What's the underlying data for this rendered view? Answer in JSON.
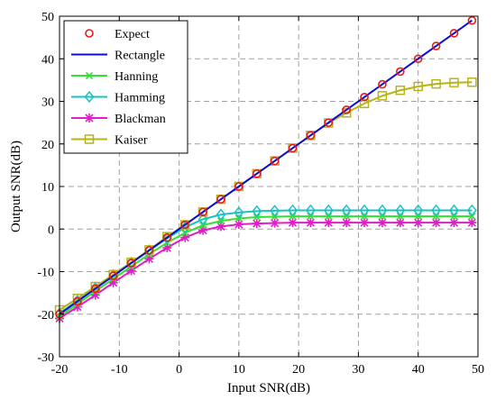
{
  "chart_data": {
    "type": "line",
    "title": "",
    "xlabel": "Input SNR(dB)",
    "ylabel": "Output SNR(dB)",
    "xlim": [
      -20,
      50
    ],
    "ylim": [
      -30,
      50
    ],
    "xticks": [
      -20,
      -10,
      0,
      10,
      20,
      30,
      40,
      50
    ],
    "yticks": [
      -30,
      -20,
      -10,
      0,
      10,
      20,
      30,
      40,
      50
    ],
    "xtick_labels": [
      "-20",
      "-10",
      "0",
      "10",
      "20",
      "30",
      "40",
      "50"
    ],
    "ytick_labels": [
      "-30",
      "-20",
      "-10",
      "0",
      "10",
      "20",
      "30",
      "40",
      "50"
    ],
    "grid": true,
    "legend_position": "top-left",
    "x": [
      -20,
      -17,
      -14,
      -11,
      -8,
      -5,
      -2,
      1,
      4,
      7,
      10,
      13,
      16,
      19,
      22,
      25,
      28,
      31,
      34,
      37,
      40,
      43,
      46,
      49
    ],
    "series": [
      {
        "name": "Expect",
        "color": "#e8191b",
        "marker": "circle",
        "line": false,
        "values": [
          -20,
          -17,
          -14,
          -11,
          -8,
          -5,
          -2,
          1,
          4,
          7,
          10,
          13,
          16,
          19,
          22,
          25,
          28,
          31,
          34,
          37,
          40,
          43,
          46,
          49
        ]
      },
      {
        "name": "Rectangle",
        "color": "#0d0dd4",
        "marker": "none",
        "line": true,
        "values": [
          -20,
          -17,
          -14,
          -11,
          -8,
          -5,
          -2,
          1,
          4,
          7,
          10,
          13,
          16,
          19,
          22,
          25,
          28,
          31,
          34,
          37,
          40,
          43,
          46,
          49
        ]
      },
      {
        "name": "Hanning",
        "color": "#33e033",
        "marker": "x",
        "line": true,
        "values": [
          -20.6,
          -17.6,
          -14.6,
          -11.7,
          -8.8,
          -5.9,
          -3.2,
          -0.9,
          0.9,
          1.9,
          2.5,
          2.8,
          2.9,
          3.0,
          3.0,
          3.0,
          3.0,
          3.0,
          3.0,
          3.0,
          3.0,
          3.0,
          3.0,
          3.0
        ]
      },
      {
        "name": "Hamming",
        "color": "#19c2c2",
        "marker": "diamond",
        "line": true,
        "values": [
          -19.8,
          -16.8,
          -13.8,
          -10.8,
          -7.9,
          -5.0,
          -2.2,
          0.4,
          2.3,
          3.4,
          3.9,
          4.2,
          4.3,
          4.4,
          4.4,
          4.4,
          4.4,
          4.4,
          4.4,
          4.4,
          4.4,
          4.4,
          4.4,
          4.4
        ]
      },
      {
        "name": "Blackman",
        "color": "#e01ec8",
        "marker": "asterisk",
        "line": true,
        "values": [
          -21.0,
          -18.3,
          -15.5,
          -12.6,
          -9.8,
          -7.0,
          -4.4,
          -2.0,
          -0.3,
          0.6,
          1.1,
          1.3,
          1.4,
          1.5,
          1.5,
          1.5,
          1.5,
          1.5,
          1.5,
          1.5,
          1.5,
          1.5,
          1.5,
          1.5
        ]
      },
      {
        "name": "Kaiser",
        "color": "#b7b319",
        "marker": "square",
        "line": true,
        "values": [
          -19.0,
          -16.3,
          -13.5,
          -10.7,
          -7.8,
          -4.9,
          -1.8,
          1.0,
          4.0,
          7.0,
          10.0,
          13.0,
          16.0,
          19.0,
          22.0,
          24.9,
          27.3,
          29.5,
          31.3,
          32.6,
          33.5,
          34.1,
          34.4,
          34.5
        ]
      }
    ]
  }
}
